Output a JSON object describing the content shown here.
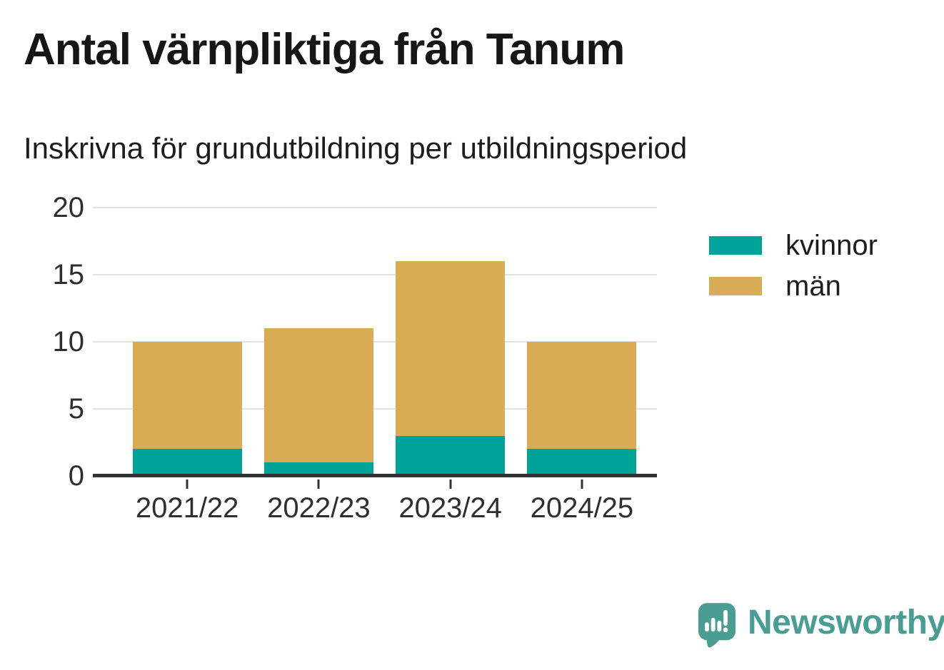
{
  "header": {
    "title": "Antal värnpliktiga från Tanum",
    "subtitle": "Inskrivna för grundutbildning per utbildningsperiod"
  },
  "chart_data": {
    "type": "bar",
    "stacked": true,
    "title": "Antal värnpliktiga från Tanum",
    "subtitle": "Inskrivna för grundutbildning per utbildningsperiod",
    "categories": [
      "2021/22",
      "2022/23",
      "2023/24",
      "2024/25"
    ],
    "series": [
      {
        "name": "kvinnor",
        "color": "#00a39a",
        "values": [
          2,
          1,
          3,
          2
        ]
      },
      {
        "name": "män",
        "color": "#d9ad55",
        "values": [
          8,
          10,
          13,
          8
        ]
      }
    ],
    "stacked_totals": [
      10,
      11,
      16,
      10
    ],
    "xlabel": "",
    "ylabel": "",
    "ylim": [
      0,
      20
    ],
    "yticks": [
      0,
      5,
      10,
      15,
      20
    ],
    "grid": true,
    "legend_position": "right"
  },
  "colors": {
    "kvinnor": "#00a39a",
    "man": "#d9ad55",
    "axis": "#333333",
    "gridline": "#e2e2e2",
    "brand_teal": "#4a9d93"
  },
  "footer": {
    "brand": "Newsworthy",
    "logo_icon": "bar-chart-speech-bubble-icon"
  }
}
